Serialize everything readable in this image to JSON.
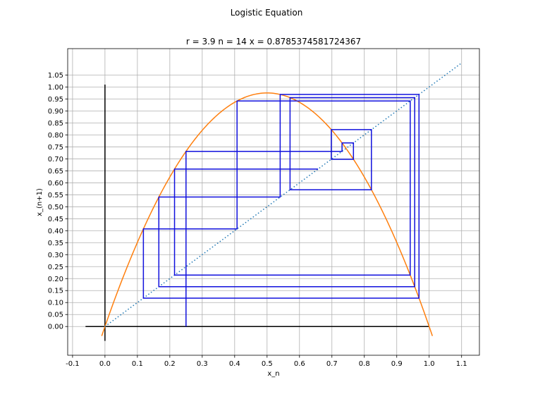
{
  "figure": {
    "suptitle": "Logistic Equation"
  },
  "chart_data": {
    "type": "line",
    "title": "r = 3.9 n = 14 x = 0.8785374581724367",
    "xlabel": "x_n",
    "ylabel": "x_(n+1)",
    "xlim": [
      -0.115,
      1.155
    ],
    "ylim": [
      -0.12,
      1.16
    ],
    "x_ticks": [
      "-0.1",
      "0.0",
      "0.1",
      "0.2",
      "0.3",
      "0.4",
      "0.5",
      "0.6",
      "0.7",
      "0.8",
      "0.9",
      "1.0",
      "1.1"
    ],
    "y_ticks": [
      "0.00",
      "0.05",
      "0.10",
      "0.15",
      "0.20",
      "0.25",
      "0.30",
      "0.35",
      "0.40",
      "0.45",
      "0.50",
      "0.55",
      "0.60",
      "0.65",
      "0.70",
      "0.75",
      "0.80",
      "0.85",
      "0.90",
      "0.95",
      "1.00",
      "1.05"
    ],
    "grid": true,
    "parameters": {
      "r": 3.9,
      "n": 14,
      "x0": 0.25
    },
    "series": [
      {
        "kind": "parabola",
        "color": "#ff7f0e",
        "x_range": [
          -0.01,
          1.01
        ]
      },
      {
        "kind": "diagonal",
        "color": "#1f77b4",
        "style": "dotted",
        "x_range": [
          0,
          1.1
        ]
      },
      {
        "kind": "cobweb",
        "color": "#1010dd"
      }
    ],
    "axes_lines": [
      {
        "orientation": "horizontal",
        "y": 0,
        "x_range": [
          -0.06,
          1.0
        ],
        "color": "#000000"
      },
      {
        "orientation": "vertical",
        "x": 0,
        "y_range": [
          -0.06,
          1.01
        ],
        "color": "#000000"
      }
    ]
  }
}
